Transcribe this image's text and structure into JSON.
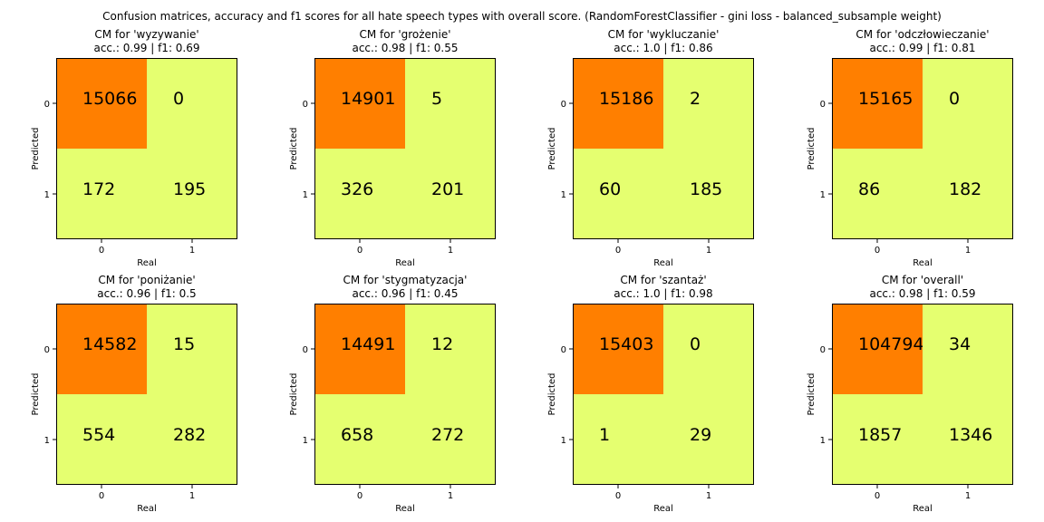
{
  "figure_title": "Confusion matrices, accuracy and f1 scores for all hate speech types with overall score. (RandomForestClassifier - gini loss - balanced_subsample weight)",
  "colors": {
    "high": "#ff7f00",
    "low": "#e5ff70",
    "frame": "#000000"
  },
  "chart_data": [
    {
      "type": "heatmap",
      "title": "CM for 'wyzywanie'",
      "subtitle": "acc.: 0.99 | f1: 0.69",
      "xlabel": "Real",
      "ylabel": "Predicted",
      "x_ticks": [
        "0",
        "1"
      ],
      "y_ticks": [
        "0",
        "1"
      ],
      "matrix": [
        [
          15066,
          0
        ],
        [
          172,
          195
        ]
      ]
    },
    {
      "type": "heatmap",
      "title": "CM for 'grożenie'",
      "subtitle": "acc.: 0.98 | f1: 0.55",
      "xlabel": "Real",
      "ylabel": "Predicted",
      "x_ticks": [
        "0",
        "1"
      ],
      "y_ticks": [
        "0",
        "1"
      ],
      "matrix": [
        [
          14901,
          5
        ],
        [
          326,
          201
        ]
      ]
    },
    {
      "type": "heatmap",
      "title": "CM for 'wykluczanie'",
      "subtitle": "acc.: 1.0 | f1: 0.86",
      "xlabel": "Real",
      "ylabel": "Predicted",
      "x_ticks": [
        "0",
        "1"
      ],
      "y_ticks": [
        "0",
        "1"
      ],
      "matrix": [
        [
          15186,
          2
        ],
        [
          60,
          185
        ]
      ]
    },
    {
      "type": "heatmap",
      "title": "CM for 'odczłowieczanie'",
      "subtitle": "acc.: 0.99 | f1: 0.81",
      "xlabel": "Real",
      "ylabel": "Predicted",
      "x_ticks": [
        "0",
        "1"
      ],
      "y_ticks": [
        "0",
        "1"
      ],
      "matrix": [
        [
          15165,
          0
        ],
        [
          86,
          182
        ]
      ]
    },
    {
      "type": "heatmap",
      "title": "CM for 'poniżanie'",
      "subtitle": "acc.: 0.96 | f1: 0.5",
      "xlabel": "Real",
      "ylabel": "Predicted",
      "x_ticks": [
        "0",
        "1"
      ],
      "y_ticks": [
        "0",
        "1"
      ],
      "matrix": [
        [
          14582,
          15
        ],
        [
          554,
          282
        ]
      ]
    },
    {
      "type": "heatmap",
      "title": "CM for 'stygmatyzacja'",
      "subtitle": "acc.: 0.96 | f1: 0.45",
      "xlabel": "Real",
      "ylabel": "Predicted",
      "x_ticks": [
        "0",
        "1"
      ],
      "y_ticks": [
        "0",
        "1"
      ],
      "matrix": [
        [
          14491,
          12
        ],
        [
          658,
          272
        ]
      ]
    },
    {
      "type": "heatmap",
      "title": "CM for 'szantaż'",
      "subtitle": "acc.: 1.0 | f1: 0.98",
      "xlabel": "Real",
      "ylabel": "Predicted",
      "x_ticks": [
        "0",
        "1"
      ],
      "y_ticks": [
        "0",
        "1"
      ],
      "matrix": [
        [
          15403,
          0
        ],
        [
          1,
          29
        ]
      ]
    },
    {
      "type": "heatmap",
      "title": "CM for 'overall'",
      "subtitle": "acc.: 0.98 | f1: 0.59",
      "xlabel": "Real",
      "ylabel": "Predicted",
      "x_ticks": [
        "0",
        "1"
      ],
      "y_ticks": [
        "0",
        "1"
      ],
      "matrix": [
        [
          104794,
          34
        ],
        [
          1857,
          1346
        ]
      ]
    }
  ]
}
